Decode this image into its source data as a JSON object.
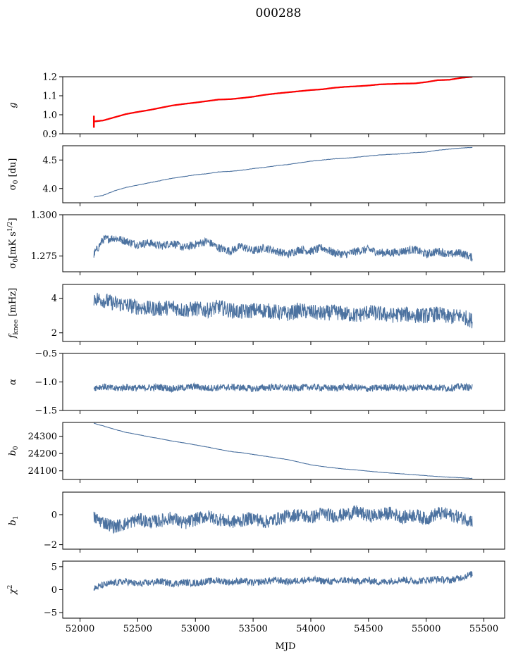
{
  "figure": {
    "title": "000288",
    "xlabel": "MJD",
    "x_ticks": [
      52000,
      52500,
      53000,
      53500,
      54000,
      54500,
      55000,
      55500
    ],
    "xlim": [
      51850,
      55680
    ],
    "series_color": "#4c72a0",
    "model_color": "#ff0000"
  },
  "chart_data": [
    {
      "type": "line",
      "ylabel": "g",
      "ylim": [
        0.9,
        1.2
      ],
      "y_ticks": [
        "0.9",
        "1.0",
        "1.1",
        "1.2"
      ],
      "series": [
        {
          "x": [
            52120,
            52200,
            52300,
            52400,
            52500,
            52600,
            52700,
            52800,
            52900,
            53000,
            53100,
            53200,
            53300,
            53400,
            53500,
            53600,
            53700,
            53800,
            53900,
            54000,
            54100,
            54200,
            54300,
            54400,
            54500,
            54600,
            54700,
            54800,
            54900,
            55000,
            55100,
            55200,
            55300,
            55400
          ],
          "y": [
            0.962,
            0.968,
            0.985,
            1.002,
            1.013,
            1.023,
            1.035,
            1.047,
            1.055,
            1.062,
            1.07,
            1.078,
            1.08,
            1.086,
            1.093,
            1.103,
            1.11,
            1.116,
            1.122,
            1.128,
            1.132,
            1.14,
            1.145,
            1.148,
            1.152,
            1.158,
            1.16,
            1.162,
            1.163,
            1.17,
            1.18,
            1.182,
            1.192,
            1.198
          ]
        },
        {
          "x": [
            52120,
            52200,
            52300,
            52400,
            52500,
            52600,
            52700,
            52800,
            52900,
            53000,
            53100,
            53200,
            53300,
            53400,
            53500,
            53600,
            53700,
            53800,
            53900,
            54000,
            54100,
            54200,
            54300,
            54400,
            54500,
            54600,
            54700,
            54800,
            54900,
            55000,
            55100,
            55200,
            55300,
            55400
          ],
          "y": [
            0.965,
            0.97,
            0.987,
            1.004,
            1.015,
            1.025,
            1.037,
            1.049,
            1.057,
            1.064,
            1.072,
            1.08,
            1.082,
            1.088,
            1.095,
            1.105,
            1.112,
            1.118,
            1.124,
            1.13,
            1.134,
            1.142,
            1.147,
            1.15,
            1.154,
            1.16,
            1.162,
            1.164,
            1.165,
            1.172,
            1.182,
            1.184,
            1.194,
            1.2
          ]
        }
      ]
    },
    {
      "type": "line",
      "ylabel": "σ0 [du]",
      "ylim": [
        3.75,
        4.75
      ],
      "y_ticks": [
        "4.0",
        "4.5"
      ],
      "series": [
        {
          "x": [
            52120,
            52200,
            52300,
            52400,
            52500,
            52600,
            52700,
            52800,
            52900,
            53000,
            53100,
            53200,
            53300,
            53400,
            53500,
            53600,
            53700,
            53800,
            53900,
            54000,
            54100,
            54200,
            54300,
            54400,
            54500,
            54600,
            54700,
            54800,
            54900,
            55000,
            55100,
            55200,
            55300,
            55400
          ],
          "y": [
            3.85,
            3.88,
            3.96,
            4.02,
            4.06,
            4.1,
            4.14,
            4.18,
            4.21,
            4.24,
            4.26,
            4.29,
            4.3,
            4.32,
            4.35,
            4.37,
            4.4,
            4.42,
            4.45,
            4.48,
            4.5,
            4.52,
            4.53,
            4.55,
            4.57,
            4.59,
            4.6,
            4.61,
            4.63,
            4.64,
            4.67,
            4.69,
            4.71,
            4.72
          ]
        }
      ]
    },
    {
      "type": "line",
      "ylabel": "σ0[mK s^1/2]",
      "ylim": [
        1.2655,
        1.3
      ],
      "y_ticks": [
        "1.275",
        "1.300"
      ],
      "series": [
        {
          "x": [
            52120,
            52200,
            52300,
            52400,
            52500,
            52600,
            52700,
            52800,
            52900,
            53000,
            53100,
            53200,
            53300,
            53400,
            53500,
            53600,
            53700,
            53800,
            53900,
            54000,
            54100,
            54200,
            54300,
            54400,
            54500,
            54600,
            54700,
            54800,
            54900,
            55000,
            55100,
            55200,
            55300,
            55400
          ],
          "y": [
            1.276,
            1.285,
            1.286,
            1.284,
            1.282,
            1.283,
            1.281,
            1.283,
            1.28,
            1.282,
            1.284,
            1.28,
            1.278,
            1.281,
            1.278,
            1.28,
            1.278,
            1.276,
            1.279,
            1.278,
            1.28,
            1.277,
            1.276,
            1.278,
            1.279,
            1.277,
            1.277,
            1.278,
            1.279,
            1.276,
            1.278,
            1.276,
            1.277,
            1.274
          ]
        }
      ]
    },
    {
      "type": "line",
      "ylabel": "fknee [mHz]",
      "ylim": [
        1.5,
        4.8
      ],
      "y_ticks": [
        "2",
        "4"
      ],
      "series": [
        {
          "x": [
            52120,
            52200,
            52300,
            52400,
            52500,
            52600,
            52700,
            52800,
            52900,
            53000,
            53100,
            53200,
            53300,
            53400,
            53500,
            53600,
            53700,
            53800,
            53900,
            54000,
            54100,
            54200,
            54300,
            54400,
            54500,
            54600,
            54700,
            54800,
            54900,
            55000,
            55100,
            55200,
            55300,
            55400
          ],
          "y": [
            4.0,
            3.9,
            3.7,
            3.6,
            3.5,
            3.4,
            3.4,
            3.5,
            3.3,
            3.4,
            3.3,
            3.5,
            3.3,
            3.2,
            3.3,
            3.3,
            3.2,
            3.1,
            3.3,
            3.2,
            3.1,
            3.2,
            3.1,
            3.0,
            3.2,
            3.1,
            3.0,
            3.1,
            3.0,
            3.0,
            3.1,
            2.9,
            3.0,
            2.7
          ]
        }
      ]
    },
    {
      "type": "line",
      "ylabel": "α",
      "ylim": [
        -1.5,
        -0.5
      ],
      "y_ticks": [
        "−1.5",
        "−1.0",
        "−0.5"
      ],
      "series": [
        {
          "x": [
            52120,
            52200,
            52300,
            52400,
            52500,
            52600,
            52700,
            52800,
            52900,
            53000,
            53100,
            53200,
            53300,
            53400,
            53500,
            53600,
            53700,
            53800,
            53900,
            54000,
            54100,
            54200,
            54300,
            54400,
            54500,
            54600,
            54700,
            54800,
            54900,
            55000,
            55100,
            55200,
            55300,
            55400
          ],
          "y": [
            -1.1,
            -1.08,
            -1.12,
            -1.09,
            -1.11,
            -1.1,
            -1.09,
            -1.12,
            -1.1,
            -1.08,
            -1.11,
            -1.1,
            -1.09,
            -1.1,
            -1.12,
            -1.1,
            -1.09,
            -1.11,
            -1.1,
            -1.09,
            -1.1,
            -1.11,
            -1.09,
            -1.1,
            -1.12,
            -1.1,
            -1.09,
            -1.11,
            -1.1,
            -1.09,
            -1.1,
            -1.11,
            -1.08,
            -1.1
          ]
        }
      ]
    },
    {
      "type": "line",
      "ylabel": "b0",
      "ylim": [
        24050,
        24380
      ],
      "y_ticks": [
        "24100",
        "24200",
        "24300"
      ],
      "series": [
        {
          "x": [
            52120,
            52200,
            52300,
            52400,
            52500,
            52600,
            52700,
            52800,
            52900,
            53000,
            53100,
            53200,
            53300,
            53400,
            53500,
            53600,
            53700,
            53800,
            53900,
            54000,
            54100,
            54200,
            54300,
            54400,
            54500,
            54600,
            54700,
            54800,
            54900,
            55000,
            55100,
            55200,
            55300,
            55400
          ],
          "y": [
            24375,
            24360,
            24340,
            24322,
            24310,
            24297,
            24285,
            24272,
            24262,
            24250,
            24238,
            24225,
            24212,
            24205,
            24195,
            24185,
            24175,
            24165,
            24150,
            24135,
            24125,
            24117,
            24110,
            24105,
            24098,
            24092,
            24087,
            24082,
            24077,
            24072,
            24067,
            24063,
            24060,
            24056
          ]
        }
      ]
    },
    {
      "type": "line",
      "ylabel": "b1",
      "ylim": [
        -2.3,
        1.5
      ],
      "y_ticks": [
        "−2",
        "0"
      ],
      "series": [
        {
          "x": [
            52120,
            52200,
            52300,
            52400,
            52500,
            52600,
            52700,
            52800,
            52900,
            53000,
            53100,
            53200,
            53300,
            53400,
            53500,
            53600,
            53700,
            53800,
            53900,
            54000,
            54100,
            54200,
            54300,
            54400,
            54500,
            54600,
            54700,
            54800,
            54900,
            55000,
            55100,
            55200,
            55300,
            55400
          ],
          "y": [
            -0.2,
            -0.5,
            -0.8,
            -0.6,
            -0.3,
            -0.5,
            -0.4,
            -0.2,
            -0.6,
            -0.3,
            -0.1,
            -0.3,
            -0.5,
            -0.4,
            -0.2,
            -0.5,
            -0.3,
            -0.1,
            0.0,
            -0.2,
            0.1,
            -0.1,
            0.0,
            0.2,
            -0.1,
            0.0,
            0.1,
            -0.2,
            0.0,
            -0.3,
            0.1,
            0.0,
            -0.2,
            -0.4
          ]
        }
      ]
    },
    {
      "type": "line",
      "ylabel": "χ2",
      "ylim": [
        -6.2,
        6.2
      ],
      "y_ticks": [
        "−5",
        "0",
        "5"
      ],
      "series": [
        {
          "x": [
            52120,
            52200,
            52300,
            52400,
            52500,
            52600,
            52700,
            52800,
            52900,
            53000,
            53100,
            53200,
            53300,
            53400,
            53500,
            53600,
            53700,
            53800,
            53900,
            54000,
            54100,
            54200,
            54300,
            54400,
            54500,
            54600,
            54700,
            54800,
            54900,
            55000,
            55100,
            55200,
            55300,
            55400
          ],
          "y": [
            0.2,
            1.0,
            1.5,
            1.8,
            1.2,
            1.5,
            1.8,
            1.3,
            1.6,
            1.4,
            1.8,
            2.0,
            1.6,
            1.9,
            1.5,
            1.8,
            2.1,
            1.7,
            2.0,
            2.2,
            1.9,
            1.7,
            2.1,
            1.8,
            2.0,
            1.6,
            1.9,
            2.2,
            1.8,
            2.1,
            2.3,
            2.0,
            2.6,
            3.4
          ]
        }
      ]
    }
  ]
}
